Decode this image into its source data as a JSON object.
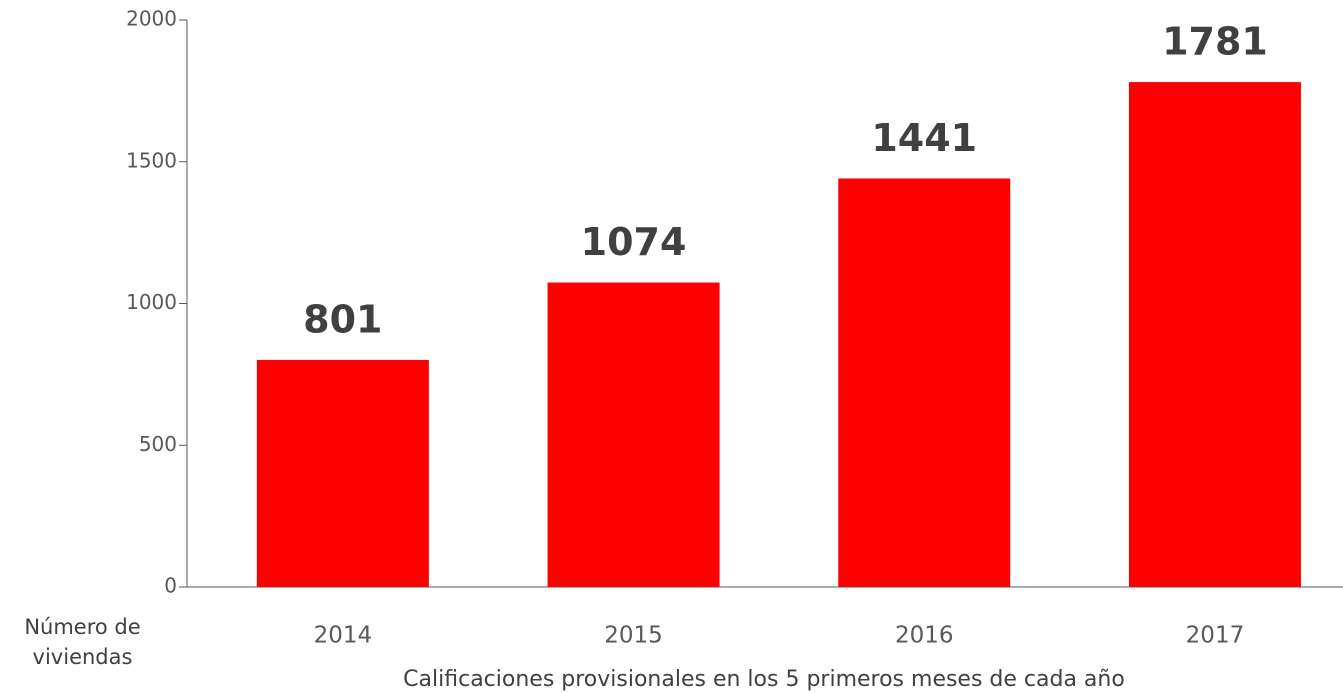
{
  "chart_data": {
    "type": "bar",
    "y_label": "Número de viviendas",
    "x_label": "Calificaciones provisionales en los 5 primeros meses de cada año",
    "categories": [
      "2014",
      "2015",
      "2016",
      "2017"
    ],
    "values": [
      801,
      1074,
      1441,
      1781
    ],
    "color": "#ff0000",
    "ylim": [
      0,
      2000
    ],
    "yticks": [
      0,
      500,
      1000,
      1500,
      2000
    ],
    "grid": false
  }
}
